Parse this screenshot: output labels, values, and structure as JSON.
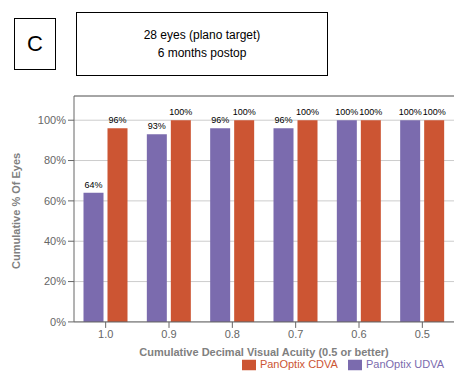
{
  "chart_data": {
    "type": "bar",
    "title": "28 eyes (plano target)",
    "subtitle": "6 months postop",
    "annotations": [
      "C"
    ],
    "xlabel": "Cumulative Decimal Visual  Acuity (0.5 or better)",
    "ylabel": "Cumulative % Of Eyes",
    "categories": [
      "1.0",
      "0.9",
      "0.8",
      "0.7",
      "0.6",
      "0.5"
    ],
    "series": [
      {
        "name": "PanOptix UDVA",
        "color": "#7B6BAE",
        "values": [
          64,
          93,
          96,
          96,
          100,
          100
        ],
        "value_labels": [
          "64%",
          "93%",
          "96%",
          "96%",
          "100%",
          "100%"
        ]
      },
      {
        "name": "PanOptix CDVA",
        "color": "#CC5533",
        "values": [
          96,
          100,
          100,
          100,
          100,
          100
        ],
        "value_labels": [
          "96%",
          "100%",
          "100%",
          "100%",
          "100%",
          "100%"
        ]
      }
    ],
    "ylim": [
      0,
      112
    ],
    "yticks": [
      {
        "value": 0,
        "label": "0%"
      },
      {
        "value": 20,
        "label": "20%"
      },
      {
        "value": 40,
        "label": "40%"
      },
      {
        "value": 60,
        "label": "60%"
      },
      {
        "value": 80,
        "label": "80%"
      },
      {
        "value": 100,
        "label": "100%"
      }
    ],
    "grid": true,
    "legend": "lower right",
    "data_labels": true
  }
}
